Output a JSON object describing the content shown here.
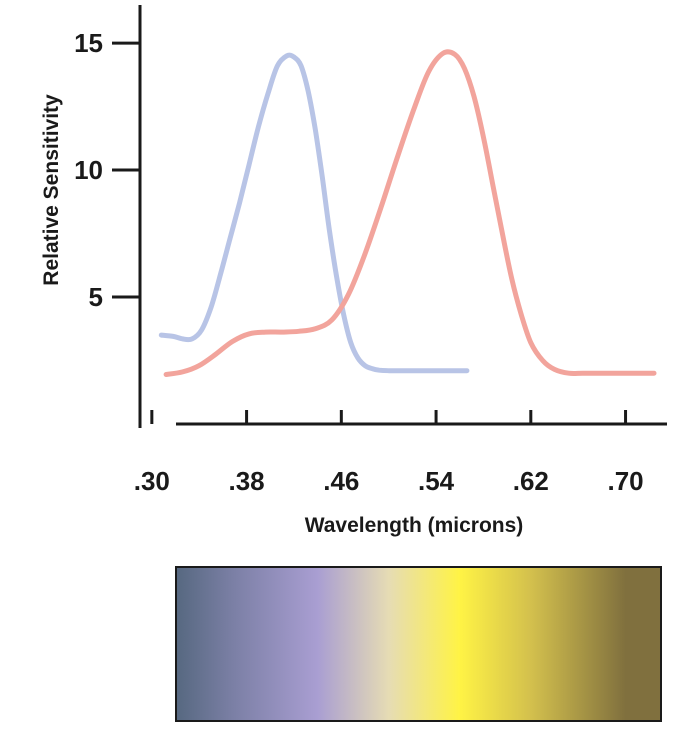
{
  "chart_data": {
    "type": "line",
    "xlabel": "Wavelength (microns)",
    "ylabel": "Relative Sensitivity",
    "x_ticks": [
      ".30",
      ".38",
      ".46",
      ".54",
      ".62",
      ".70"
    ],
    "y_ticks": [
      "5",
      "10",
      "15"
    ],
    "xlim": [
      0.29,
      0.735
    ],
    "ylim": [
      0,
      16.5
    ],
    "grid": false,
    "series": [
      {
        "color": "#b8c4e6",
        "x": [
          0.308,
          0.318,
          0.326,
          0.334,
          0.342,
          0.35,
          0.358,
          0.366,
          0.374,
          0.382,
          0.39,
          0.398,
          0.406,
          0.414,
          0.42,
          0.426,
          0.432,
          0.438,
          0.444,
          0.45,
          0.456,
          0.462,
          0.468,
          0.474,
          0.48,
          0.486,
          0.492,
          0.5,
          0.508,
          0.516,
          0.53,
          0.55,
          0.566
        ],
        "y": [
          3.5,
          3.45,
          3.35,
          3.35,
          3.7,
          4.6,
          5.9,
          7.3,
          8.7,
          10.2,
          11.7,
          13.0,
          14.1,
          14.5,
          14.45,
          14.1,
          13.1,
          11.6,
          9.7,
          7.6,
          5.8,
          4.3,
          3.2,
          2.6,
          2.3,
          2.18,
          2.12,
          2.1,
          2.1,
          2.1,
          2.1,
          2.1,
          2.1
        ]
      },
      {
        "color": "#f2a49c",
        "x": [
          0.312,
          0.326,
          0.34,
          0.354,
          0.368,
          0.382,
          0.396,
          0.41,
          0.424,
          0.438,
          0.452,
          0.466,
          0.48,
          0.494,
          0.508,
          0.522,
          0.534,
          0.546,
          0.556,
          0.564,
          0.572,
          0.58,
          0.588,
          0.596,
          0.604,
          0.612,
          0.62,
          0.63,
          0.64,
          0.652,
          0.664,
          0.68,
          0.7,
          0.724
        ],
        "y": [
          1.95,
          2.05,
          2.3,
          2.75,
          3.25,
          3.55,
          3.62,
          3.62,
          3.65,
          3.75,
          4.1,
          5.1,
          6.7,
          8.6,
          10.6,
          12.5,
          13.9,
          14.6,
          14.55,
          14.0,
          12.9,
          11.3,
          9.4,
          7.5,
          5.7,
          4.3,
          3.2,
          2.5,
          2.15,
          2.0,
          2.0,
          2.0,
          2.0,
          2.0
        ]
      }
    ],
    "color_bar": {
      "stops": [
        {
          "x": 0.3,
          "color": "#566880"
        },
        {
          "x": 0.37,
          "color": "#7c80a6"
        },
        {
          "x": 0.44,
          "color": "#a99ed2"
        },
        {
          "x": 0.5,
          "color": "#e6dcb4"
        },
        {
          "x": 0.56,
          "color": "#fff345"
        },
        {
          "x": 0.62,
          "color": "#d3c04d"
        },
        {
          "x": 0.7,
          "color": "#80703e"
        }
      ]
    }
  }
}
